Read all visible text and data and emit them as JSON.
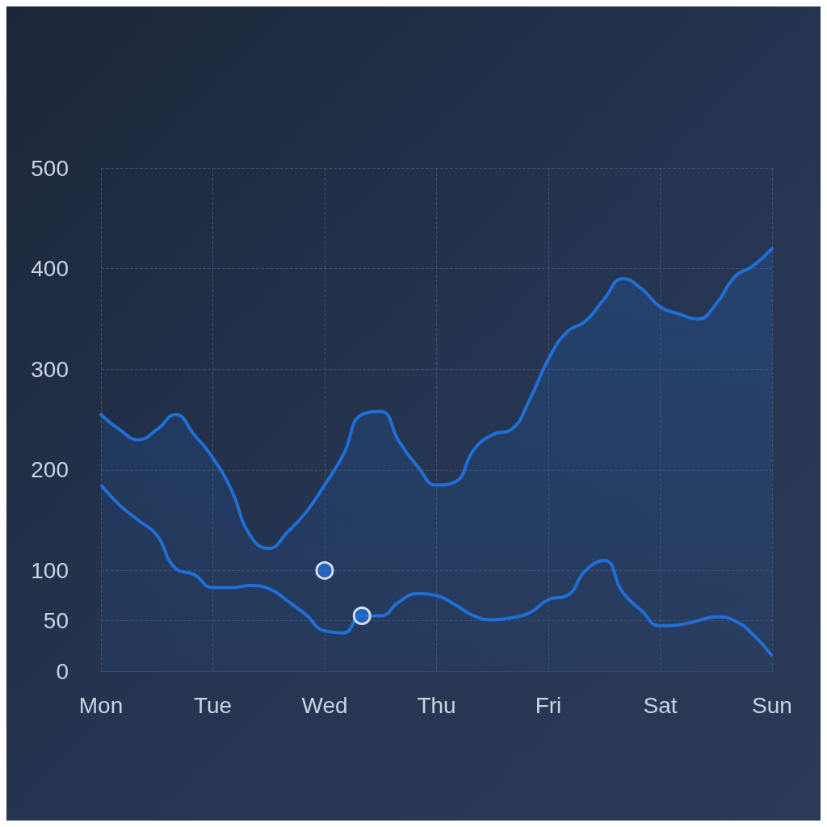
{
  "chart_data": {
    "type": "area",
    "categories": [
      "Mon",
      null,
      null,
      null,
      null,
      null,
      "Tue",
      null,
      null,
      null,
      null,
      null,
      "Wed",
      null,
      null,
      null,
      null,
      null,
      "Thu",
      null,
      null,
      null,
      null,
      null,
      "Fri",
      null,
      null,
      null,
      null,
      null,
      "Sat",
      null,
      null,
      null,
      null,
      null,
      "Sun"
    ],
    "ylim": [
      0,
      500
    ],
    "yticks": [
      0,
      50,
      100,
      200,
      300,
      400,
      500
    ],
    "grid": true,
    "line_style": "solid",
    "marker": "none",
    "series": [
      {
        "color": "#1f6fd6",
        "values": [
          255,
          240,
          230,
          240,
          255,
          235,
          212,
          180,
          135,
          122,
          138,
          158,
          185,
          215,
          255,
          258,
          228,
          203,
          185,
          188,
          220,
          235,
          240,
          270,
          310,
          337,
          348,
          370,
          390,
          380,
          362,
          355,
          350,
          365,
          392,
          403,
          420
        ]
      },
      {
        "type": "line",
        "color": "#1f6fd6",
        "values": [
          185,
          165,
          150,
          135,
          102,
          96,
          83,
          83,
          85,
          82,
          70,
          56,
          40,
          38,
          55,
          55,
          69,
          77,
          75,
          66,
          55,
          51,
          53,
          58,
          71,
          75,
          100,
          110,
          78,
          60,
          45,
          46,
          50,
          54,
          50,
          36,
          15
        ]
      },
      {
        "type": "scatter",
        "marker": "circle",
        "color": "#1f6fd6",
        "values": [
          null,
          null,
          null,
          null,
          null,
          null,
          null,
          null,
          null,
          null,
          null,
          null,
          100,
          null,
          55,
          null,
          null,
          null,
          null,
          null,
          null,
          null,
          null,
          null,
          null,
          null,
          null,
          null,
          null,
          null,
          null,
          null,
          null,
          null,
          null,
          null,
          null
        ]
      }
    ]
  }
}
